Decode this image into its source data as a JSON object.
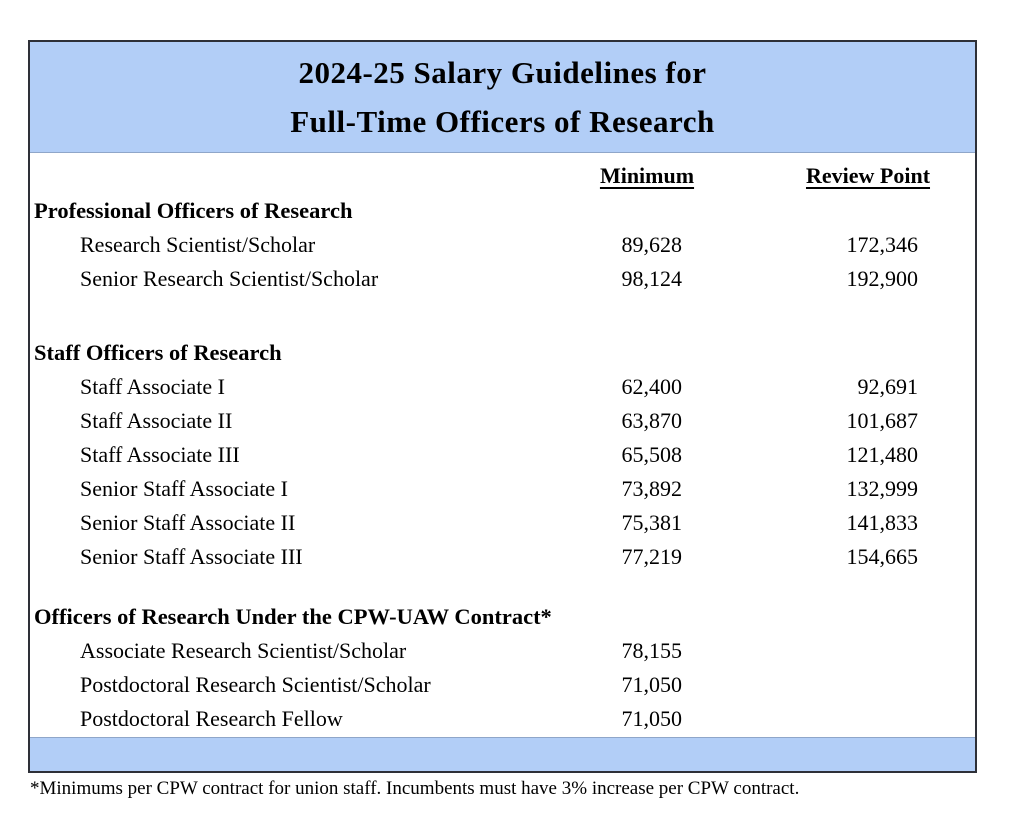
{
  "title": {
    "line1": "2024-25 Salary Guidelines for",
    "line2": "Full-Time Officers of Research"
  },
  "columns": {
    "minimum": "Minimum",
    "review_point": "Review Point"
  },
  "sections": [
    {
      "heading": "Professional Officers of Research",
      "rows": [
        {
          "label": "Research Scientist/Scholar",
          "minimum": "89,628",
          "review_point": "172,346"
        },
        {
          "label": "Senior Research Scientist/Scholar",
          "minimum": "98,124",
          "review_point": "192,900"
        }
      ]
    },
    {
      "heading": "Staff Officers of Research",
      "rows": [
        {
          "label": "Staff Associate I",
          "minimum": "62,400",
          "review_point": "92,691"
        },
        {
          "label": "Staff Associate II",
          "minimum": "63,870",
          "review_point": "101,687"
        },
        {
          "label": "Staff Associate III",
          "minimum": "65,508",
          "review_point": "121,480"
        },
        {
          "label": "Senior Staff Associate I",
          "minimum": "73,892",
          "review_point": "132,999"
        },
        {
          "label": "Senior Staff Associate II",
          "minimum": "75,381",
          "review_point": "141,833"
        },
        {
          "label": "Senior Staff Associate III",
          "minimum": "77,219",
          "review_point": "154,665"
        }
      ]
    },
    {
      "heading": "Officers of Research Under the CPW-UAW Contract*",
      "rows": [
        {
          "label": "Associate Research Scientist/Scholar",
          "minimum": "78,155",
          "review_point": ""
        },
        {
          "label": "Postdoctoral Research Scientist/Scholar",
          "minimum": "71,050",
          "review_point": ""
        },
        {
          "label": "Postdoctoral Research Fellow",
          "minimum": "71,050",
          "review_point": ""
        }
      ]
    }
  ],
  "footnote": "*Minimums per CPW contract for union staff. Incumbents must have 3% increase per CPW contract.",
  "colors": {
    "band_blue": "#b2cef7",
    "border": "#2e3038",
    "text": "#000000"
  }
}
